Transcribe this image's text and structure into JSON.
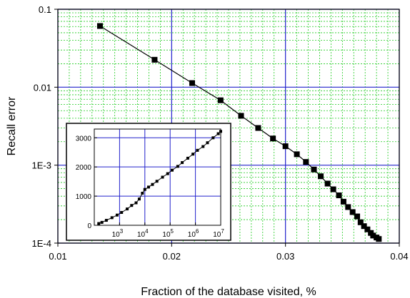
{
  "chart_data": [
    {
      "type": "line",
      "title": "",
      "xlabel": "Fraction of the database visited, %",
      "ylabel": "Recall error",
      "xlim": [
        0.01,
        0.04
      ],
      "ylim": [
        0.0001,
        0.1
      ],
      "yscale": "log",
      "grid": true,
      "minor_grid": true,
      "x_ticks": [
        {
          "value": 0.01,
          "label": "0.01"
        },
        {
          "value": 0.02,
          "label": "0.02"
        },
        {
          "value": 0.03,
          "label": "0.03"
        },
        {
          "value": 0.04,
          "label": "0.04"
        }
      ],
      "y_ticks": [
        {
          "value": 0.1,
          "label": "0.1"
        },
        {
          "value": 0.01,
          "label": "0.01"
        },
        {
          "value": 0.001,
          "label": "1E-3"
        },
        {
          "value": 0.0001,
          "label": "1E-4"
        }
      ],
      "colors": {
        "major_grid": "#2222cc",
        "minor_grid": "#22cc22",
        "series": "#000000"
      },
      "marker": "square",
      "series": [
        {
          "x": [
            0.0137,
            0.0185,
            0.0218,
            0.0243,
            0.0261,
            0.0276,
            0.0289,
            0.03,
            0.031,
            0.0318,
            0.0325,
            0.0331,
            0.0337,
            0.0342,
            0.0347,
            0.0351,
            0.0355,
            0.0359,
            0.0363,
            0.0366,
            0.0369,
            0.0372,
            0.0375,
            0.0377,
            0.038,
            0.0382
          ],
          "y": [
            0.061,
            0.0225,
            0.0113,
            0.0068,
            0.0043,
            0.003,
            0.0022,
            0.00175,
            0.00138,
            0.0011,
            0.00088,
            0.00072,
            0.00058,
            0.00049,
            0.00041,
            0.00034,
            0.00029,
            0.00025,
            0.00022,
            0.000185,
            0.000165,
            0.00015,
            0.000135,
            0.000125,
            0.000118,
            0.000113
          ]
        }
      ]
    },
    {
      "type": "line",
      "title": "",
      "inset": true,
      "xscale": "log",
      "xlim": [
        100,
        10000000
      ],
      "ylim": [
        0,
        3300
      ],
      "grid": true,
      "x_ticks": [
        {
          "value": 1000,
          "base": "10",
          "exp": "3"
        },
        {
          "value": 10000,
          "base": "10",
          "exp": "4"
        },
        {
          "value": 100000,
          "base": "10",
          "exp": "5"
        },
        {
          "value": 1000000,
          "base": "10",
          "exp": "6"
        },
        {
          "value": 10000000,
          "base": "10",
          "exp": "7"
        }
      ],
      "y_ticks": [
        {
          "value": 0,
          "label": "0"
        },
        {
          "value": 1000,
          "label": "1000"
        },
        {
          "value": 2000,
          "label": "2000"
        },
        {
          "value": 3000,
          "label": "3000"
        }
      ],
      "colors": {
        "grid": "#2222cc",
        "series": "#000000"
      },
      "marker": "square",
      "series": [
        {
          "x": [
            150,
            200,
            300,
            500,
            800,
            1200,
            2000,
            3000,
            4500,
            6000,
            8000,
            10000,
            14000,
            20000,
            30000,
            50000,
            80000,
            120000,
            200000,
            300000,
            500000,
            800000,
            1200000,
            2000000,
            3000000,
            5000000,
            8000000,
            10000000
          ],
          "y": [
            60,
            100,
            170,
            260,
            350,
            440,
            560,
            680,
            770,
            900,
            1100,
            1230,
            1310,
            1400,
            1510,
            1650,
            1770,
            1890,
            2020,
            2150,
            2300,
            2440,
            2570,
            2700,
            2830,
            3000,
            3140,
            3220
          ]
        }
      ]
    }
  ]
}
